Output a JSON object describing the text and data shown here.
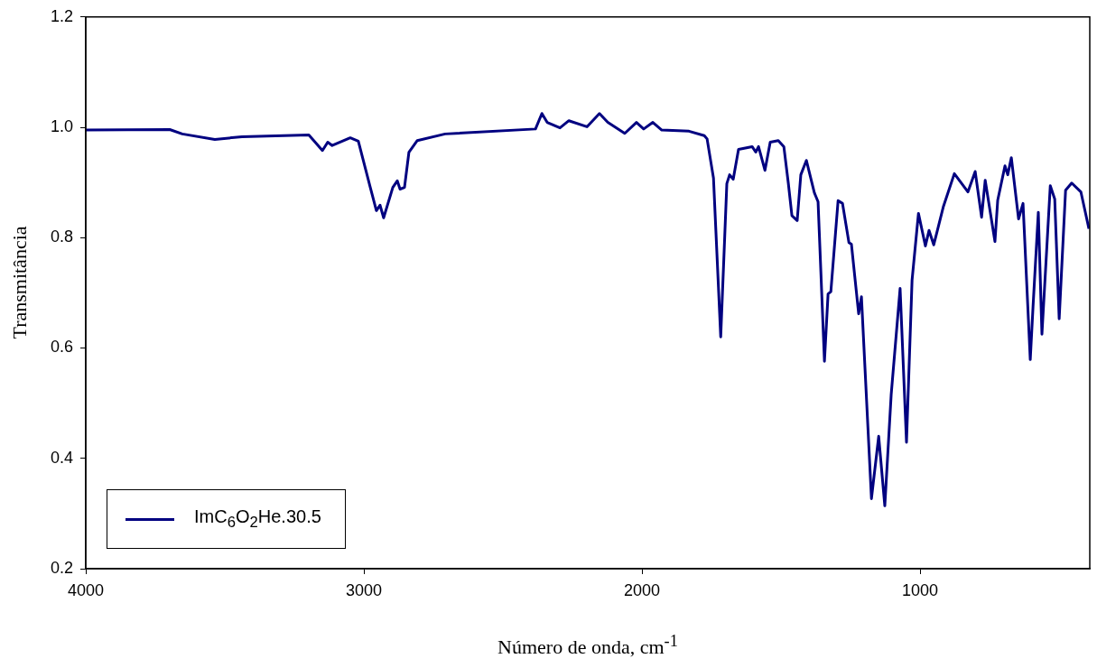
{
  "chart_data": {
    "type": "line",
    "xlabel": "Número de onda, cm$^{-1}$",
    "ylabel": "Transmitância",
    "xlim": [
      4000,
      390
    ],
    "xticks": [
      4000,
      3000,
      2000,
      1000
    ],
    "ylim": [
      0.2,
      1.2
    ],
    "yticks": [
      0.2,
      0.4,
      0.6,
      0.8,
      {
        "value": 1,
        "label": "1.0"
      },
      1.2
    ],
    "grid": false,
    "legend": "bottom left",
    "marker": "none",
    "line_style": "solid",
    "series": [
      {
        "name": "ImC$_{6}$O$_{2}$He.30.5",
        "color": "#000080",
        "x": [
          4000,
          3698,
          3653,
          3536,
          3438,
          3198,
          3149,
          3130,
          3114,
          3049,
          3020,
          2977,
          2955,
          2942,
          2929,
          2896,
          2880,
          2870,
          2854,
          2838,
          2808,
          2708,
          2383,
          2360,
          2341,
          2295,
          2263,
          2198,
          2153,
          2123,
          2062,
          2020,
          1994,
          1961,
          1929,
          1831,
          1776,
          1766,
          1743,
          1717,
          1695,
          1685,
          1672,
          1653,
          1604,
          1591,
          1581,
          1558,
          1539,
          1510,
          1490,
          1474,
          1461,
          1442,
          1429,
          1409,
          1380,
          1367,
          1344,
          1331,
          1321,
          1295,
          1279,
          1256,
          1247,
          1221,
          1211,
          1175,
          1149,
          1127,
          1104,
          1072,
          1049,
          1029,
          1006,
          981,
          968,
          951,
          916,
          877,
          828,
          802,
          779,
          766,
          731,
          721,
          695,
          685,
          672,
          646,
          630,
          604,
          594,
          575,
          562,
          532,
          516,
          500,
          477,
          455,
          422,
          393
        ],
        "values": [
          0.995,
          0.996,
          0.988,
          0.978,
          0.983,
          0.986,
          0.958,
          0.973,
          0.967,
          0.981,
          0.975,
          0.891,
          0.849,
          0.859,
          0.836,
          0.891,
          0.903,
          0.888,
          0.891,
          0.955,
          0.976,
          0.988,
          0.997,
          1.025,
          1.009,
          0.999,
          1.012,
          1.001,
          1.025,
          1.009,
          0.989,
          1.009,
          0.997,
          1.009,
          0.995,
          0.993,
          0.985,
          0.979,
          0.908,
          0.62,
          0.898,
          0.914,
          0.906,
          0.96,
          0.965,
          0.955,
          0.965,
          0.922,
          0.973,
          0.976,
          0.965,
          0.899,
          0.84,
          0.831,
          0.914,
          0.94,
          0.881,
          0.865,
          0.576,
          0.698,
          0.702,
          0.867,
          0.862,
          0.791,
          0.788,
          0.662,
          0.693,
          0.327,
          0.44,
          0.314,
          0.516,
          0.708,
          0.429,
          0.723,
          0.844,
          0.785,
          0.813,
          0.787,
          0.857,
          0.916,
          0.883,
          0.92,
          0.837,
          0.904,
          0.793,
          0.868,
          0.93,
          0.914,
          0.945,
          0.834,
          0.862,
          0.579,
          0.675,
          0.846,
          0.625,
          0.894,
          0.87,
          0.653,
          0.886,
          0.899,
          0.883,
          0.816
        ]
      }
    ]
  }
}
